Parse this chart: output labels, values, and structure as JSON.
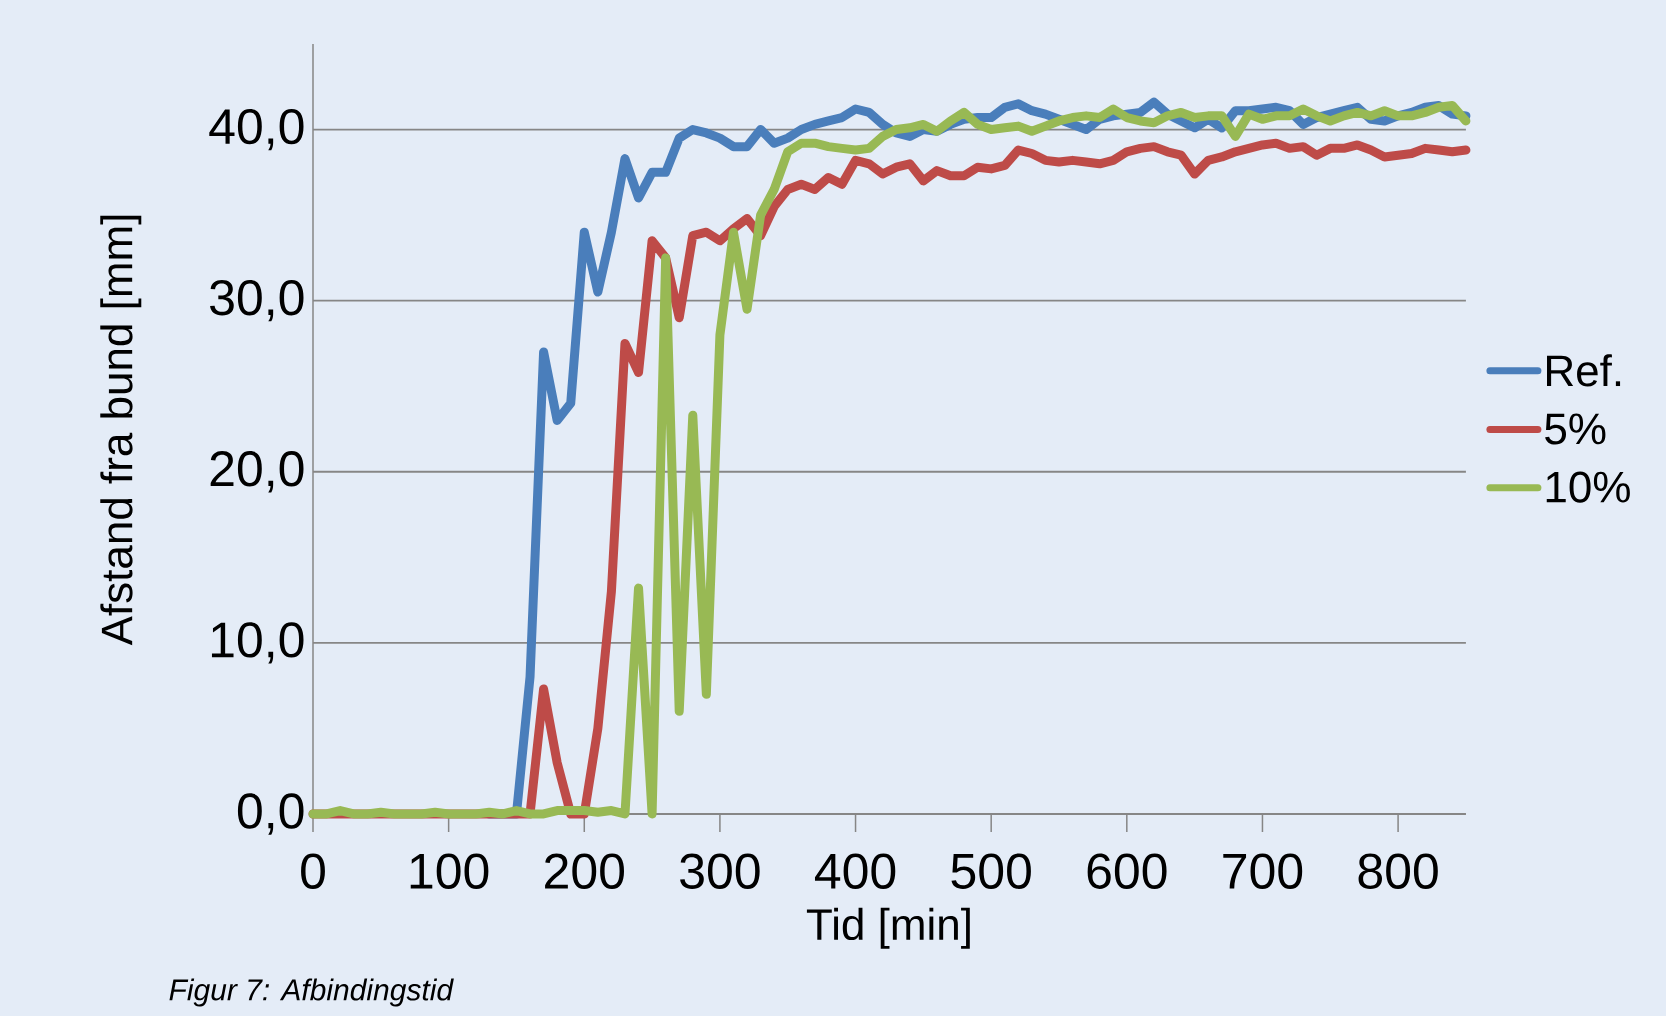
{
  "chart_data": {
    "type": "line",
    "xlabel": "Tid [min]",
    "ylabel": "Afstand fra bund [mm]",
    "annotations": [
      "Figur 7: Afbindingstid"
    ],
    "x": [
      0,
      10,
      20,
      30,
      40,
      50,
      60,
      70,
      80,
      90,
      100,
      110,
      120,
      130,
      140,
      150,
      160,
      170,
      180,
      190,
      200,
      210,
      220,
      230,
      240,
      250,
      260,
      270,
      280,
      290,
      300,
      310,
      320,
      330,
      340,
      350,
      360,
      370,
      380,
      390,
      400,
      410,
      420,
      430,
      440,
      450,
      460,
      470,
      480,
      490,
      500,
      510,
      520,
      530,
      540,
      550,
      560,
      570,
      580,
      590,
      600,
      610,
      620,
      630,
      640,
      650,
      660,
      670,
      680,
      690,
      700,
      710,
      720,
      730,
      740,
      750,
      760,
      770,
      780,
      790,
      800,
      810,
      820,
      830,
      840,
      850
    ],
    "series": [
      {
        "name": "Ref.",
        "color": "#4a7ebb",
        "values": [
          null,
          null,
          null,
          null,
          null,
          null,
          null,
          null,
          null,
          null,
          null,
          null,
          null,
          0,
          0,
          0,
          8,
          27,
          23,
          24,
          34,
          30.5,
          34,
          38.3,
          36,
          37.5,
          37.5,
          39.5,
          40,
          39.8,
          39.5,
          39,
          39,
          40,
          39.2,
          39.5,
          40,
          40.3,
          40.5,
          40.7,
          41.2,
          41,
          40.3,
          39.8,
          39.6,
          40,
          39.9,
          40.3,
          40.6,
          40.7,
          40.7,
          41.3,
          41.5,
          41.1,
          40.9,
          40.6,
          40.3,
          40,
          40.6,
          40.8,
          40.9,
          41,
          41.6,
          40.9,
          40.5,
          40.1,
          40.6,
          40.1,
          41.1,
          41.1,
          41.2,
          41.3,
          41.1,
          40.3,
          40.7,
          40.9,
          41.1,
          41.3,
          40.6,
          40.5,
          40.8,
          41,
          41.3,
          41.4,
          40.9,
          40.8
        ]
      },
      {
        "name": "5%",
        "color": "#be4b48",
        "values": [
          0,
          0,
          0,
          0,
          0,
          0,
          0,
          0,
          0,
          0,
          0,
          0,
          0,
          0,
          0,
          0,
          0,
          7.3,
          3,
          0,
          0,
          5,
          13,
          27.5,
          25.8,
          33.5,
          32.5,
          29,
          33.8,
          34,
          33.5,
          34.2,
          34.8,
          33.8,
          35.5,
          36.5,
          36.8,
          36.5,
          37.2,
          36.8,
          38.2,
          38,
          37.4,
          37.8,
          38,
          37,
          37.6,
          37.3,
          37.3,
          37.8,
          37.7,
          37.9,
          38.8,
          38.6,
          38.2,
          38.1,
          38.2,
          38.1,
          38,
          38.2,
          38.7,
          38.9,
          39,
          38.7,
          38.5,
          37.4,
          38.2,
          38.4,
          38.7,
          38.9,
          39.1,
          39.2,
          38.9,
          39,
          38.5,
          38.9,
          38.9,
          39.1,
          38.8,
          38.4,
          38.5,
          38.6,
          38.9,
          38.8,
          38.7,
          38.8
        ]
      },
      {
        "name": "10%",
        "color": "#98b954",
        "values": [
          0,
          0,
          0.2,
          0,
          0,
          0.1,
          0,
          0,
          0,
          0.1,
          0,
          0,
          0,
          0.1,
          0,
          0.2,
          0,
          0,
          0.2,
          0.2,
          0.2,
          0.1,
          0.2,
          0,
          13.2,
          0,
          32.5,
          6,
          23.3,
          7,
          28,
          34,
          29.5,
          35,
          36.5,
          38.7,
          39.2,
          39.2,
          39,
          38.9,
          38.8,
          38.9,
          39.6,
          40,
          40.1,
          40.3,
          39.9,
          40.5,
          41,
          40.3,
          40,
          40.1,
          40.2,
          39.9,
          40.2,
          40.5,
          40.7,
          40.8,
          40.7,
          41.2,
          40.7,
          40.5,
          40.4,
          40.8,
          41,
          40.7,
          40.8,
          40.8,
          39.6,
          40.9,
          40.6,
          40.8,
          40.8,
          41.2,
          40.8,
          40.5,
          40.8,
          41,
          40.8,
          41.1,
          40.8,
          40.8,
          41,
          41.3,
          41.4,
          40.5
        ]
      }
    ],
    "xlim": [
      0,
      850
    ],
    "ylim": [
      0,
      45
    ],
    "xticks": [
      0,
      100,
      200,
      300,
      400,
      500,
      600,
      700,
      800
    ],
    "yticks": [
      {
        "value": 0,
        "label": "0,0"
      },
      {
        "value": 10,
        "label": "10,0"
      },
      {
        "value": 20,
        "label": "20,0"
      },
      {
        "value": 30,
        "label": "30,0"
      },
      {
        "value": 40,
        "label": "40,0"
      }
    ],
    "grid": "y",
    "legend": "right",
    "marker": "none",
    "line_style": "solid"
  }
}
